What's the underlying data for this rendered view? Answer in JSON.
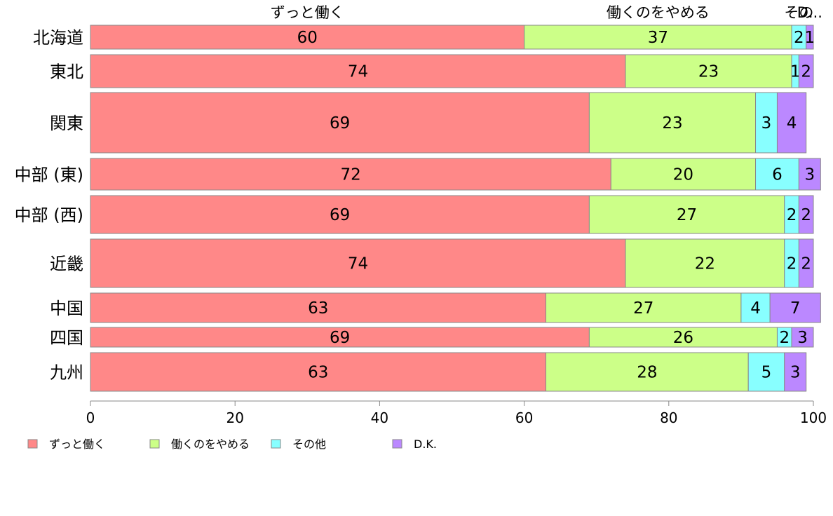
{
  "chart_data": {
    "type": "bar",
    "orientation": "horizontal",
    "stacked": true,
    "categories": [
      "北海道",
      "東北",
      "関東",
      "中部 (東)",
      "中部 (西)",
      "近畿",
      "中国",
      "四国",
      "九州"
    ],
    "series": [
      {
        "name": "ずっと働く",
        "color": "#ff8888",
        "values": [
          60,
          74,
          69,
          72,
          69,
          74,
          63,
          69,
          63
        ],
        "labels": [
          "60",
          "74",
          "69",
          "72",
          "69",
          "74",
          "63",
          "69",
          "63"
        ]
      },
      {
        "name": "働くのをやめる",
        "color": "#ccff88",
        "values": [
          37,
          23,
          23,
          20,
          27,
          22,
          27,
          26,
          28
        ],
        "labels": [
          "37",
          "23",
          "23",
          "20",
          "27",
          "22",
          "27",
          "26",
          "28"
        ]
      },
      {
        "name": "その他",
        "color": "#88ffff",
        "values": [
          2,
          1,
          3,
          6,
          2,
          2,
          4,
          2,
          5
        ],
        "labels": [
          "2",
          "1",
          "3",
          "6",
          "2",
          "2",
          "4",
          "2",
          "5"
        ]
      },
      {
        "name": "D.K.",
        "color": "#bb88ff",
        "values": [
          1,
          2,
          4,
          3,
          2,
          2,
          7,
          3,
          3
        ],
        "labels": [
          "1",
          "2",
          "4",
          "3",
          "2",
          "2",
          "7",
          "3",
          "3"
        ]
      }
    ],
    "top_labels": [
      "ずっと働く",
      "働くのをやめる",
      "その",
      "D..."
    ],
    "xlim": [
      0,
      100
    ],
    "xticks": [
      "0",
      "20",
      "40",
      "60",
      "80",
      "100"
    ],
    "xlabel": "",
    "ylabel": "",
    "grid": false,
    "legend_position": "bottom-left"
  }
}
